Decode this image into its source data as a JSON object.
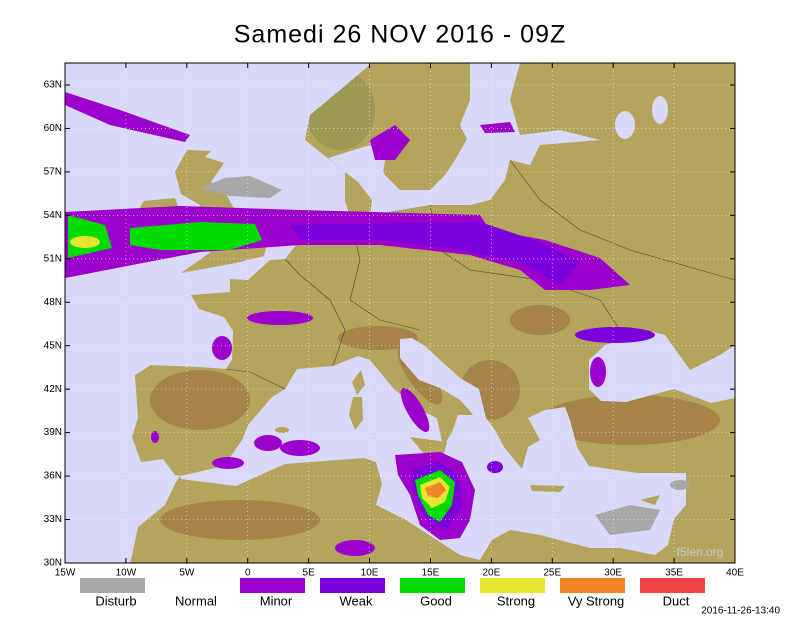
{
  "title": "Samedi 26 NOV 2016 - 09Z",
  "map": {
    "lat_labels": [
      "63N",
      "60N",
      "57N",
      "54N",
      "51N",
      "48N",
      "45N",
      "42N",
      "39N",
      "36N",
      "33N",
      "30N"
    ],
    "lon_labels": [
      "15W",
      "10W",
      "5W",
      "0",
      "5E",
      "10E",
      "15E",
      "20E",
      "25E",
      "30E",
      "35E",
      "40E"
    ],
    "watermark": "f5len.org"
  },
  "legend": [
    {
      "label": "Disturb",
      "color": "#a8a8a8"
    },
    {
      "label": "Normal"
    },
    {
      "label": "Minor",
      "color": "#9c00cc"
    },
    {
      "label": "Weak",
      "color": "#7a00dc"
    },
    {
      "label": "Good",
      "color": "#00dc00"
    },
    {
      "label": "Strong",
      "color": "#e6e632"
    },
    {
      "label": "Vy Strong",
      "color": "#f08228"
    },
    {
      "label": "Duct",
      "color": "#f04646"
    }
  ],
  "timestamp": "2016-11-26-13:40"
}
